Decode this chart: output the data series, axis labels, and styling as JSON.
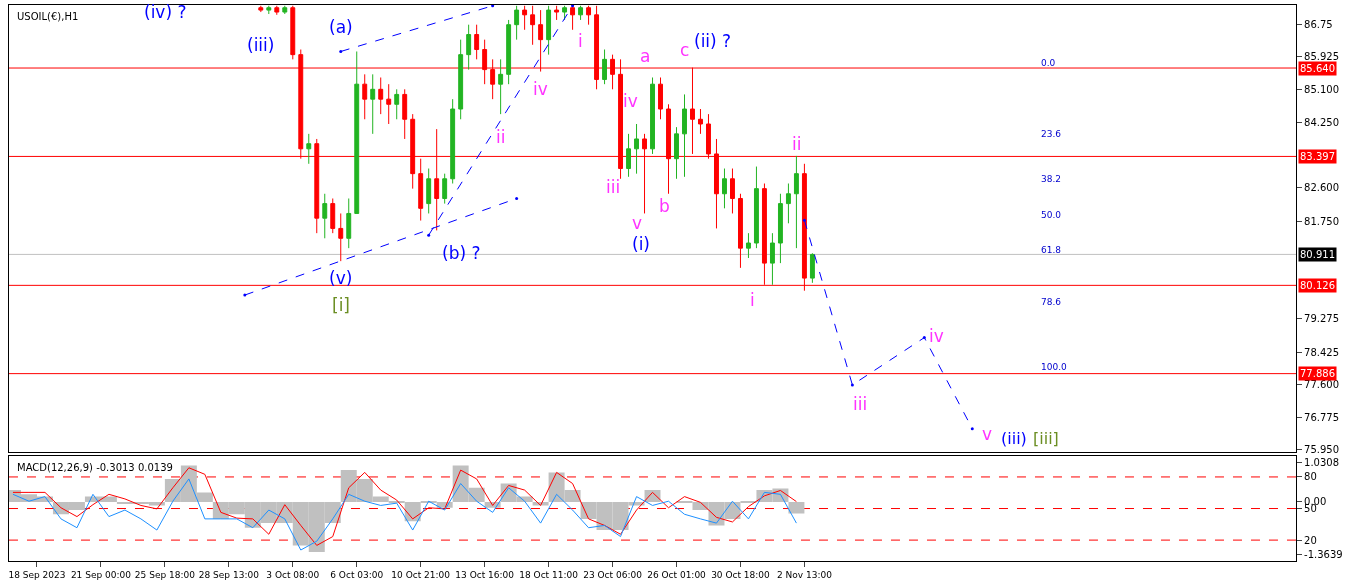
{
  "chart_data": [
    {
      "type": "candlestick",
      "title": "USOIL(€),H1",
      "categories": [
        null,
        null,
        null,
        null,
        null,
        null,
        null,
        null,
        null,
        null,
        null,
        null,
        null,
        null,
        null,
        null,
        null,
        null,
        null,
        null,
        null,
        null,
        null,
        null,
        null,
        null,
        null,
        null,
        null,
        null,
        null,
        null,
        null,
        null,
        null,
        null,
        null,
        null,
        null,
        null,
        null,
        null,
        null,
        null,
        null,
        null,
        null,
        null,
        null,
        null,
        null,
        null,
        null,
        null,
        null,
        null,
        null,
        null,
        null,
        null,
        null,
        null,
        null,
        null,
        null,
        null,
        null,
        null,
        null,
        null,
        null,
        null,
        null,
        null,
        null,
        null,
        null,
        null,
        null,
        null,
        null,
        null,
        null,
        null,
        null,
        null,
        null,
        null,
        null,
        null,
        null,
        null,
        null,
        null,
        null,
        null,
        null,
        null,
        null,
        null,
        null,
        null,
        null,
        null,
        null,
        null,
        null,
        null,
        null,
        null,
        null,
        null,
        null,
        null,
        null,
        null,
        null,
        null,
        null,
        null,
        null,
        null,
        null,
        null,
        null,
        null,
        null,
        null,
        null,
        null,
        null,
        null,
        null,
        null,
        null,
        null,
        null,
        null,
        null,
        null,
        null,
        null,
        null,
        null,
        null,
        null,
        null,
        null,
        null,
        null,
        null,
        null,
        null,
        null,
        null,
        null,
        null,
        null,
        null,
        null,
        null
      ],
      "ohlc": [
        null,
        null,
        null,
        null,
        null,
        null,
        null,
        null,
        null,
        null,
        null,
        null,
        null,
        null,
        null,
        null,
        null,
        null,
        null,
        null,
        null,
        null,
        null,
        null,
        null,
        null,
        null,
        null,
        null,
        null,
        null,
        [
          87.17,
          87.22,
          87.06,
          87.11
        ],
        [
          87.11,
          87.22,
          87.01,
          87.17
        ],
        [
          87.17,
          87.22,
          86.99,
          87.06
        ],
        [
          87.06,
          87.22,
          87.01,
          87.17
        ],
        [
          87.17,
          87.22,
          85.86,
          85.98
        ],
        [
          85.98,
          86.11,
          83.34,
          83.59
        ],
        [
          83.59,
          83.97,
          83.21,
          83.72
        ],
        [
          83.72,
          83.84,
          81.45,
          81.83
        ],
        [
          81.83,
          82.45,
          81.32,
          82.2
        ],
        [
          82.2,
          82.33,
          81.45,
          81.57
        ],
        [
          81.57,
          81.95,
          80.74,
          81.32
        ],
        [
          81.32,
          82.33,
          81.07,
          81.95
        ],
        [
          81.95,
          86.06,
          81.95,
          85.23
        ],
        [
          85.23,
          85.48,
          84.34,
          84.85
        ],
        [
          84.85,
          85.48,
          83.97,
          85.1
        ],
        [
          85.1,
          85.4,
          84.47,
          84.85
        ],
        [
          84.85,
          85.23,
          84.22,
          84.72
        ],
        [
          84.72,
          85.1,
          84.34,
          84.97
        ],
        [
          84.97,
          85.1,
          83.84,
          84.34
        ],
        [
          84.34,
          84.47,
          82.58,
          82.96
        ],
        [
          82.96,
          83.34,
          81.77,
          82.08
        ],
        [
          82.2,
          83.09,
          81.95,
          82.83
        ],
        [
          82.83,
          84.09,
          81.52,
          82.33
        ],
        [
          82.33,
          82.96,
          82.2,
          82.83
        ],
        [
          82.83,
          84.85,
          82.71,
          84.6
        ],
        [
          84.6,
          86.36,
          84.34,
          85.98
        ],
        [
          85.98,
          86.74,
          85.6,
          86.49
        ],
        [
          86.49,
          86.74,
          85.86,
          86.11
        ],
        [
          86.11,
          86.36,
          85.23,
          85.6
        ],
        [
          85.6,
          85.86,
          84.85,
          85.23
        ],
        [
          85.23,
          85.86,
          84.47,
          85.48
        ],
        [
          85.48,
          86.86,
          85.23,
          86.74
        ],
        [
          86.74,
          87.22,
          86.36,
          87.11
        ],
        [
          87.11,
          87.22,
          86.61,
          86.99
        ],
        [
          86.99,
          87.22,
          86.23,
          86.74
        ],
        [
          86.74,
          87.11,
          85.55,
          86.36
        ],
        [
          86.36,
          87.22,
          85.98,
          87.11
        ],
        [
          87.11,
          87.22,
          86.86,
          87.06
        ],
        [
          87.06,
          87.22,
          86.86,
          87.17
        ],
        [
          87.17,
          87.22,
          86.61,
          86.99
        ],
        [
          86.99,
          87.22,
          86.86,
          87.17
        ],
        [
          87.17,
          87.22,
          86.74,
          86.99
        ],
        [
          86.99,
          87.22,
          85.1,
          85.35
        ],
        [
          85.35,
          86.11,
          85.23,
          85.86
        ],
        [
          85.86,
          85.98,
          85.1,
          85.48
        ],
        [
          85.48,
          85.86,
          82.83,
          83.09
        ],
        [
          83.09,
          83.97,
          82.88,
          83.59
        ],
        [
          83.59,
          84.22,
          82.96,
          83.84
        ],
        [
          83.84,
          83.97,
          81.95,
          83.59
        ],
        [
          83.59,
          85.4,
          83.46,
          85.23
        ],
        [
          85.23,
          85.4,
          84.34,
          84.6
        ],
        [
          84.6,
          84.72,
          82.45,
          83.34
        ],
        [
          83.34,
          84.14,
          82.83,
          83.97
        ],
        [
          83.97,
          84.97,
          82.88,
          84.6
        ],
        [
          84.6,
          85.65,
          83.46,
          84.34
        ],
        [
          84.34,
          84.6,
          83.97,
          84.22
        ],
        [
          84.22,
          84.47,
          83.34,
          83.46
        ],
        [
          83.46,
          83.84,
          81.57,
          82.45
        ],
        [
          82.45,
          83.09,
          82.08,
          82.83
        ],
        [
          82.83,
          83.09,
          81.95,
          82.33
        ],
        [
          82.33,
          82.45,
          80.57,
          81.07
        ],
        [
          81.07,
          81.45,
          80.82,
          81.2
        ],
        [
          81.2,
          83.14,
          81.07,
          82.58
        ],
        [
          82.58,
          82.71,
          80.14,
          80.69
        ],
        [
          80.69,
          81.45,
          80.14,
          81.2
        ],
        [
          81.2,
          82.45,
          80.69,
          82.2
        ],
        [
          82.2,
          82.71,
          81.7,
          82.45
        ],
        [
          82.45,
          83.41,
          81.07,
          82.96
        ],
        [
          82.96,
          83.21,
          79.99,
          80.31
        ],
        [
          80.31,
          80.94,
          80.19,
          80.91
        ],
        null,
        null,
        null,
        null,
        null,
        null,
        null,
        null,
        null,
        null,
        null,
        null,
        null,
        null,
        null,
        null,
        null,
        null,
        null,
        null,
        null,
        null,
        null,
        null,
        null,
        null,
        null,
        null,
        null,
        null,
        null,
        null,
        null,
        null,
        null,
        null,
        null,
        null,
        null,
        null,
        null,
        null,
        null,
        null,
        null,
        null,
        null,
        null,
        null,
        null,
        null,
        null,
        null,
        null,
        null,
        null,
        null,
        null,
        null,
        null
      ],
      "colors": [
        null,
        null,
        null,
        null,
        null,
        null,
        null,
        null,
        null,
        null,
        null,
        null,
        null,
        null,
        null,
        null,
        null,
        null,
        null,
        null,
        null,
        null,
        null,
        null,
        null,
        null,
        null,
        null,
        null,
        null,
        null,
        "#ff0000",
        "#22b422",
        "#ff0000",
        "#22b422",
        "#ff0000",
        "#ff0000",
        "#22b422",
        "#ff0000",
        "#22b422",
        "#ff0000",
        "#ff0000",
        "#22b422",
        "#22b422",
        "#ff0000",
        "#22b422",
        "#ff0000",
        "#ff0000",
        "#22b422",
        "#ff0000",
        "#ff0000",
        "#ff0000",
        "#22b422",
        "#ff0000",
        "#22b422",
        "#22b422",
        "#22b422",
        "#22b422",
        "#ff0000",
        "#ff0000",
        "#ff0000",
        "#22b422",
        "#22b422",
        "#22b422",
        "#ff0000",
        "#ff0000",
        "#ff0000",
        "#22b422",
        "#ff0000",
        "#22b422",
        "#ff0000",
        "#22b422",
        "#ff0000",
        "#ff0000",
        "#22b422",
        "#ff0000",
        "#ff0000",
        "#22b422",
        "#22b422",
        "#ff0000",
        "#22b422",
        "#ff0000",
        "#ff0000",
        "#22b422",
        "#22b422",
        "#ff0000",
        "#ff0000",
        "#ff0000",
        "#ff0000",
        "#22b422",
        "#ff0000",
        "#ff0000",
        "#22b422",
        "#22b422",
        "#ff0000",
        "#22b422",
        "#22b422",
        "#22b422",
        "#22b422",
        "#ff0000",
        "#22b422",
        null,
        null,
        null,
        null,
        null,
        null,
        null,
        null,
        null,
        null,
        null,
        null,
        null,
        null,
        null,
        null,
        null,
        null,
        null,
        null,
        null,
        null,
        null,
        null,
        null,
        null,
        null,
        null,
        null,
        null,
        null,
        null,
        null,
        null,
        null,
        null,
        null,
        null,
        null,
        null,
        null,
        null,
        null,
        null,
        null,
        null,
        null,
        null,
        null,
        null,
        null,
        null,
        null,
        null,
        null,
        null,
        null,
        null,
        null,
        null
      ],
      "series": [
        {
          "type": "line",
          "color": "#0000ff",
          "line_style": "dashed",
          "values": [
            null,
            null,
            null,
            null,
            null,
            null,
            null,
            null,
            null,
            null,
            null,
            null,
            null,
            null,
            null,
            null,
            null,
            null,
            null,
            null,
            null,
            null,
            null,
            null,
            null,
            null,
            null,
            null,
            null,
            79.88,
            null,
            null,
            null,
            null,
            null,
            null,
            null,
            null,
            null,
            null,
            null,
            null,
            null,
            null,
            null,
            null,
            null,
            null,
            null,
            null,
            null,
            null,
            null,
            null,
            null,
            null,
            null,
            null,
            null,
            null,
            null,
            null,
            null,
            82.33,
            null,
            null,
            null,
            null,
            null,
            null,
            null,
            null,
            null,
            null,
            null,
            null,
            null,
            null,
            null,
            null,
            null,
            null,
            null,
            null,
            null,
            null,
            null,
            null,
            null,
            null,
            null,
            null,
            null,
            null,
            null,
            null,
            null,
            null,
            null,
            null,
            null,
            null,
            null,
            null,
            null,
            null,
            null,
            null,
            null,
            null,
            null,
            null,
            null,
            null,
            null,
            null,
            null,
            null,
            null,
            null,
            null,
            null,
            null,
            null,
            null,
            null,
            null,
            null,
            null,
            null,
            null,
            null,
            null,
            null,
            null,
            null,
            null,
            null,
            null,
            null,
            null,
            null,
            null,
            null,
            null,
            null,
            null,
            null,
            null,
            null,
            null,
            null,
            null,
            null,
            null,
            null,
            null,
            null,
            null,
            null,
            null
          ]
        },
        {
          "type": "line",
          "color": "#0000ff",
          "line_style": "dashed",
          "values": [
            null,
            null,
            null,
            null,
            null,
            null,
            null,
            null,
            null,
            null,
            null,
            null,
            null,
            null,
            null,
            null,
            null,
            null,
            null,
            null,
            null,
            null,
            null,
            null,
            null,
            null,
            null,
            null,
            null,
            null,
            null,
            null,
            null,
            null,
            null,
            null,
            null,
            null,
            null,
            null,
            null,
            86.06,
            null,
            null,
            null,
            null,
            null,
            null,
            null,
            null,
            null,
            null,
            null,
            null,
            null,
            null,
            null,
            null,
            null,
            null,
            87.22,
            null,
            null,
            null,
            null,
            null,
            null,
            null,
            null,
            null,
            null,
            null,
            null,
            null,
            null,
            null,
            null,
            null,
            null,
            null,
            null,
            null,
            null,
            null,
            null,
            null,
            null,
            null,
            null,
            null,
            null,
            null,
            null,
            null,
            null,
            null,
            null,
            null,
            null,
            null,
            null,
            null,
            null,
            null,
            null,
            null,
            null,
            null,
            null,
            null,
            null,
            null,
            null,
            null,
            null,
            null,
            null,
            null,
            null,
            null,
            null,
            null,
            null,
            null,
            null,
            null,
            null,
            null,
            null,
            null,
            null,
            null,
            null,
            null,
            null,
            null,
            null,
            null,
            null,
            null,
            null,
            null,
            null,
            null,
            null,
            null,
            null,
            null,
            null,
            null,
            null,
            null,
            null,
            null,
            null,
            null,
            null,
            null,
            null,
            null,
            null
          ]
        },
        {
          "type": "line",
          "color": "#0000ff",
          "line_style": "dashed",
          "values": [
            null,
            null,
            null,
            null,
            null,
            null,
            null,
            null,
            null,
            null,
            null,
            null,
            null,
            null,
            null,
            null,
            null,
            null,
            null,
            null,
            null,
            null,
            null,
            null,
            null,
            null,
            null,
            null,
            null,
            null,
            null,
            null,
            null,
            null,
            null,
            null,
            null,
            null,
            null,
            null,
            null,
            null,
            null,
            null,
            null,
            null,
            null,
            null,
            null,
            null,
            null,
            null,
            81.4,
            null,
            null,
            null,
            null,
            null,
            null,
            null,
            null,
            null,
            null,
            null,
            null,
            null,
            null,
            null,
            null,
            null,
            87.22,
            null,
            null,
            null,
            null,
            null,
            null,
            null,
            null,
            null,
            null,
            null,
            null,
            null,
            null,
            null,
            null,
            null,
            null,
            null,
            null,
            null,
            null,
            null,
            null,
            null,
            null,
            null,
            null,
            null,
            null,
            null,
            null,
            null,
            null,
            null,
            null,
            null,
            null,
            null,
            null,
            null,
            null,
            null,
            null,
            null,
            null,
            null,
            null,
            null,
            null,
            null,
            null,
            null,
            null,
            null,
            null,
            null,
            null,
            null,
            null,
            null,
            null,
            null,
            null,
            null,
            null,
            null,
            null,
            null,
            null,
            null,
            null,
            null,
            null,
            null,
            null,
            null,
            null,
            null,
            null,
            null,
            null,
            null,
            null,
            null,
            null,
            null,
            null,
            null,
            null
          ]
        },
        {
          "type": "line",
          "color": "#0000ff",
          "line_style": "dashed",
          "values": [
            null,
            null,
            null,
            null,
            null,
            null,
            null,
            null,
            null,
            null,
            null,
            null,
            null,
            null,
            null,
            null,
            null,
            null,
            null,
            null,
            null,
            null,
            null,
            null,
            null,
            null,
            null,
            null,
            null,
            null,
            null,
            null,
            null,
            null,
            null,
            null,
            null,
            null,
            null,
            null,
            null,
            null,
            null,
            null,
            null,
            null,
            null,
            null,
            null,
            null,
            null,
            null,
            null,
            null,
            null,
            null,
            null,
            null,
            null,
            null,
            null,
            null,
            null,
            null,
            null,
            null,
            null,
            null,
            null,
            null,
            null,
            null,
            null,
            null,
            null,
            null,
            null,
            null,
            null,
            null,
            null,
            null,
            null,
            null,
            null,
            null,
            null,
            null,
            null,
            null,
            null,
            null,
            null,
            null,
            null,
            null,
            null,
            null,
            null,
            81.78,
            null,
            null,
            null,
            null,
            null,
            77.6,
            null,
            null,
            null,
            null,
            null,
            null,
            null,
            null,
            78.8,
            null,
            null,
            null,
            null,
            null,
            76.49,
            null,
            null,
            null,
            null,
            null,
            null,
            null,
            null,
            null,
            null,
            null,
            null,
            null,
            null,
            null,
            null,
            null,
            null,
            null,
            null,
            null,
            null,
            null,
            null,
            null,
            null,
            null,
            null,
            null,
            null,
            null,
            null,
            null,
            null,
            null,
            null,
            null,
            null,
            null,
            null
          ]
        }
      ],
      "ylim": [
        75.9,
        87.24
      ],
      "yticks": [
        86.75,
        {
          "value": 85.925,
          "label": "85.925"
        },
        {
          "value": 85.1,
          "label": "85.100"
        },
        {
          "value": 84.25,
          "label": "84.250"
        },
        {
          "value": 82.6,
          "label": "82.600"
        },
        {
          "value": 81.75,
          "label": "81.750"
        },
        {
          "value": 79.275,
          "label": "79.275"
        },
        {
          "value": 78.425,
          "label": "78.425"
        },
        {
          "value": 77.6,
          "label": "77.600"
        },
        {
          "value": 76.775,
          "label": "76.775"
        },
        {
          "value": 75.95,
          "label": "75.950"
        }
      ],
      "ref_lines": [
        {
          "axis": "y",
          "value": 85.64,
          "label": "85.640",
          "color": "#ff0000"
        },
        {
          "axis": "y",
          "value": 83.397,
          "label": "83.397",
          "color": "#ff0000"
        },
        {
          "axis": "y",
          "value": 80.911,
          "label": "80.911",
          "color": "#c0c0c0"
        },
        {
          "axis": "y",
          "value": 80.126,
          "label": "80.126",
          "color": "#ff0000"
        },
        {
          "axis": "y",
          "value": 77.886,
          "label": "77.886",
          "color": "#ff0000"
        }
      ],
      "annotations": [
        "(iv) ?",
        "(iii)",
        "(a)",
        "(v)",
        "[i]",
        "(b) ?",
        "ii",
        "iv",
        "i",
        "iii",
        "iv",
        "v",
        "(i)",
        "a",
        "b",
        "c",
        "(ii) ?",
        "i",
        "ii",
        "iii",
        "iv",
        "v",
        "(iii)",
        "[iii]",
        "0.0",
        "23.6",
        "38.2",
        "50.0",
        "61.8",
        "78.6",
        "100.0"
      ],
      "grid": false
    },
    {
      "type": "bar",
      "title": "MACD(12,26,9) -0.3013 0.0139",
      "categories": [
        null,
        null,
        null,
        "18 Sep 2023",
        null,
        null,
        null,
        null,
        null,
        null,
        null,
        "21 Sep 00:00",
        null,
        null,
        null,
        null,
        null,
        null,
        null,
        "25 Sep 18:00",
        null,
        null,
        null,
        null,
        null,
        null,
        null,
        "28 Sep 13:00",
        null,
        null,
        null,
        null,
        null,
        null,
        null,
        "3 Oct 08:00",
        null,
        null,
        null,
        null,
        null,
        null,
        null,
        "6 Oct 03:00",
        null,
        null,
        null,
        null,
        null,
        null,
        null,
        "10 Oct 21:00",
        null,
        null,
        null,
        null,
        null,
        null,
        null,
        "13 Oct 16:00",
        null,
        null,
        null,
        null,
        null,
        null,
        null,
        "18 Oct 11:00",
        null,
        null,
        null,
        null,
        null,
        null,
        null,
        "23 Oct 06:00",
        null,
        null,
        null,
        null,
        null,
        null,
        null,
        "26 Oct 01:00",
        null,
        null,
        null,
        null,
        null,
        null,
        null,
        "30 Oct 18:00",
        null,
        null,
        null,
        null,
        null,
        null,
        null,
        "2 Nov 13:00",
        null,
        null,
        null,
        null,
        null,
        null,
        null,
        null,
        null,
        null,
        null,
        null,
        null,
        null,
        null,
        null,
        null,
        null,
        null,
        null,
        null,
        null,
        null,
        null,
        null,
        null,
        null,
        null,
        null,
        null,
        null,
        null,
        null,
        null,
        null,
        null,
        null,
        null,
        null,
        null,
        null,
        null,
        null,
        null,
        null,
        null,
        null,
        null,
        null,
        null,
        null,
        null,
        null,
        null,
        null,
        null,
        null,
        null,
        null,
        null,
        null
      ],
      "series": [
        {
          "type": "bar",
          "color": "#c0c0c0",
          "values": [
            0.31,
            null,
            0.2,
            null,
            0.14,
            null,
            -0.32,
            null,
            -0.21,
            null,
            0.14,
            null,
            0.14,
            null,
            -0.03,
            null,
            -0.03,
            null,
            -0.09,
            null,
            0.6,
            null,
            0.95,
            null,
            0.25,
            null,
            -0.44,
            null,
            -0.32,
            null,
            -0.67,
            null,
            -0.55,
            null,
            -0.55,
            null,
            -1.13,
            null,
            -1.3,
            null,
            -0.55,
            null,
            0.83,
            null,
            0.6,
            null,
            0.14,
            null,
            0.02,
            null,
            -0.5,
            null,
            0.02,
            null,
            -0.15,
            null,
            0.95,
            null,
            0.37,
            null,
            -0.15,
            null,
            0.48,
            null,
            0.14,
            null,
            -0.09,
            null,
            0.77,
            null,
            0.31,
            null,
            -0.44,
            null,
            -0.73,
            null,
            -0.73,
            null,
            -0.09,
            null,
            0.31,
            null,
            null,
            null,
            0.02,
            null,
            -0.21,
            null,
            -0.61,
            null,
            -0.44,
            null,
            0.02,
            null,
            0.31,
            null,
            0.35,
            null,
            -0.3,
            null,
            null,
            null,
            null,
            null,
            null,
            null,
            null,
            null,
            null,
            null,
            null,
            null,
            null,
            null,
            null,
            null,
            null,
            null,
            null,
            null,
            null,
            null,
            null,
            null,
            null,
            null,
            null,
            null,
            null,
            null,
            null,
            null,
            null,
            null,
            null,
            null,
            null,
            null,
            null,
            null,
            null,
            null,
            null,
            null,
            null,
            null,
            null,
            null,
            null,
            null,
            null,
            null,
            null,
            null,
            null,
            null,
            null,
            null,
            null,
            null,
            null
          ]
        },
        {
          "type": "line",
          "color": "#ff0000",
          "values": [
            0.25,
            null,
            0.25,
            null,
            0.25,
            null,
            -0.15,
            null,
            -0.38,
            null,
            -0.07,
            null,
            0.2,
            null,
            0.08,
            null,
            -0.09,
            null,
            -0.18,
            null,
            0.37,
            null,
            0.89,
            null,
            0.72,
            null,
            -0.27,
            null,
            -0.42,
            null,
            -0.44,
            null,
            -0.84,
            null,
            -0.07,
            null,
            -0.61,
            null,
            -1.13,
            null,
            -0.9,
            null,
            0.37,
            null,
            0.77,
            null,
            0.31,
            null,
            0.05,
            null,
            -0.44,
            null,
            -0.15,
            null,
            -0.18,
            null,
            0.83,
            null,
            0.6,
            null,
            -0.09,
            null,
            0.43,
            null,
            0.31,
            null,
            -0.09,
            null,
            0.77,
            null,
            0.48,
            null,
            -0.44,
            null,
            -0.61,
            null,
            -0.84,
            null,
            -0.21,
            null,
            0.25,
            null,
            -0.15,
            null,
            0.14,
            null,
            -0.01,
            null,
            -0.4,
            null,
            -0.52,
            null,
            -0.12,
            null,
            0.16,
            null,
            0.3,
            null,
            0.01,
            null,
            null,
            null,
            null,
            null,
            null,
            null,
            null,
            null,
            null,
            null,
            null,
            null,
            null,
            null,
            null,
            null,
            null,
            null,
            null,
            null,
            null,
            null,
            null,
            null,
            null,
            null,
            null,
            null,
            null,
            null,
            null,
            null,
            null,
            null,
            null,
            null,
            null,
            null,
            null,
            null,
            null,
            null,
            null,
            null,
            null,
            null,
            null,
            null,
            null,
            null,
            null,
            null,
            null,
            null,
            null,
            null,
            null,
            null,
            null,
            null,
            null
          ]
        },
        {
          "type": "line",
          "color": "#1e90ff",
          "values": [
            0.2,
            null,
            0.02,
            null,
            0.14,
            null,
            -0.44,
            null,
            -0.67,
            null,
            0.2,
            null,
            -0.38,
            null,
            -0.21,
            null,
            -0.44,
            null,
            -0.73,
            null,
            0.02,
            null,
            0.6,
            null,
            -0.44,
            null,
            -0.44,
            null,
            -0.44,
            null,
            -0.67,
            null,
            -0.21,
            null,
            -0.44,
            null,
            -1.25,
            null,
            -1.02,
            null,
            -0.44,
            null,
            0.2,
            null,
            0.02,
            null,
            -0.09,
            null,
            -0.03,
            null,
            -0.73,
            null,
            0.02,
            null,
            -0.21,
            null,
            0.48,
            null,
            0.02,
            null,
            -0.27,
            null,
            0.37,
            null,
            0.02,
            null,
            -0.55,
            null,
            0.2,
            null,
            -0.21,
            null,
            -0.67,
            null,
            -0.61,
            null,
            -0.9,
            null,
            0.14,
            null,
            -0.09,
            null,
            0.02,
            null,
            -0.32,
            null,
            -0.44,
            null,
            -0.55,
            null,
            0.02,
            null,
            -0.44,
            null,
            0.25,
            null,
            0.2,
            null,
            -0.55,
            null,
            null,
            null,
            null,
            null,
            null,
            null,
            null,
            null,
            null,
            null,
            null,
            null,
            null,
            null,
            null,
            null,
            null,
            null,
            null,
            null,
            null,
            null,
            null,
            null,
            null,
            null,
            null,
            null,
            null,
            null,
            null,
            null,
            null,
            null,
            null,
            null,
            null,
            null,
            null,
            null,
            null,
            null,
            null,
            null,
            null,
            null,
            null,
            null,
            null,
            null,
            null,
            null,
            null,
            null,
            null,
            null,
            null,
            null,
            null,
            null,
            null
          ]
        }
      ],
      "ylim": [
        -1.54,
        1.2
      ],
      "yticks": [
        1.0308,
        {
          "value": 0,
          "label": "0.00"
        },
        -1.3639
      ],
      "y2lim": [
        0,
        100
      ],
      "y2ticks": [
        80,
        50,
        20
      ],
      "ref_lines": [
        {
          "axis": "y2",
          "value": 80,
          "color": "#ff0000",
          "line_style": "dashed"
        },
        {
          "axis": "y2",
          "value": 50,
          "color": "#ff0000",
          "line_style": "dashed"
        },
        {
          "axis": "y2",
          "value": 20,
          "color": "#ff0000",
          "line_style": "dashed"
        }
      ],
      "grid": false
    }
  ]
}
